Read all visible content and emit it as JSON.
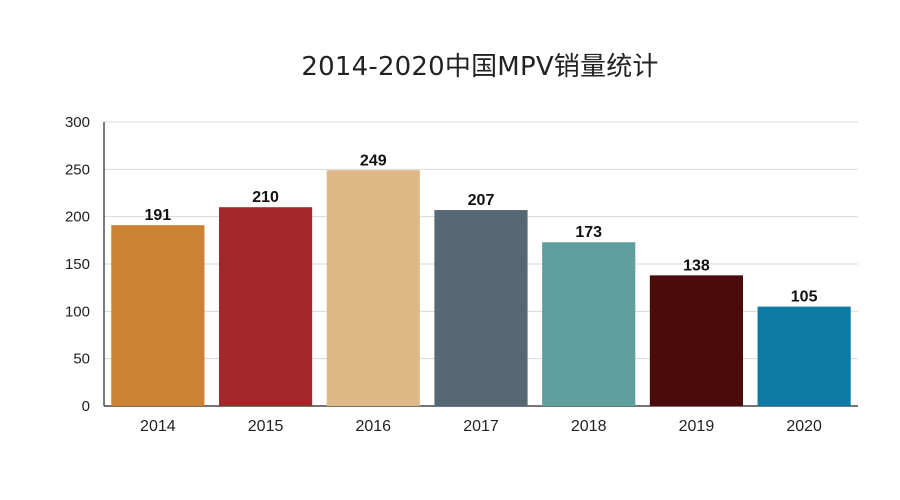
{
  "chart_data": {
    "type": "bar",
    "title": "2014-2020中国MPV销量统计",
    "xlabel": "",
    "ylabel": "",
    "categories": [
      "2014",
      "2015",
      "2016",
      "2017",
      "2018",
      "2019",
      "2020"
    ],
    "values": [
      191,
      210,
      249,
      207,
      173,
      138,
      105
    ],
    "bar_colors": [
      "#cc8233",
      "#a3282b",
      "#dfb887",
      "#566874",
      "#5f9f9f",
      "#4a0b0b",
      "#0d7aa3"
    ],
    "ylim": [
      0,
      300
    ],
    "yticks": [
      0,
      50,
      100,
      150,
      200,
      250,
      300
    ],
    "grid": true,
    "legend": "none"
  }
}
